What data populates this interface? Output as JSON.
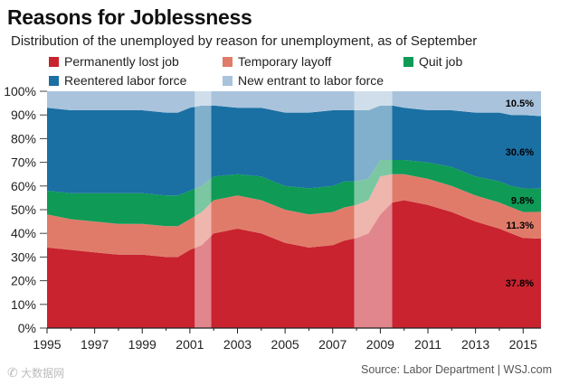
{
  "header": {
    "title": "Reasons for Joblessness",
    "subtitle": "Distribution of the unemployed by reason for unemployment, as of September"
  },
  "footer": {
    "source": "Source: Labor Department  |  WSJ.com",
    "watermark_text": "大数据网"
  },
  "chart_data": {
    "type": "area",
    "stacked": true,
    "title": "Reasons for Joblessness",
    "xlabel": "",
    "ylabel": "",
    "xlim": [
      1995,
      2015.75
    ],
    "ylim": [
      0,
      100
    ],
    "y_ticks": [
      "0%",
      "10%",
      "20%",
      "30%",
      "40%",
      "50%",
      "60%",
      "70%",
      "80%",
      "90%",
      "100%"
    ],
    "x_ticks": [
      "1995",
      "1997",
      "1999",
      "2001",
      "2003",
      "2005",
      "2007",
      "2009",
      "2011",
      "2013",
      "2015"
    ],
    "grid": false,
    "recessions": [
      [
        2001.2,
        2001.9
      ],
      [
        2007.9,
        2009.5
      ]
    ],
    "x": [
      1995,
      1996,
      1997,
      1998,
      1999,
      2000,
      2000.5,
      2001,
      2001.5,
      2002,
      2003,
      2004,
      2005,
      2006,
      2007,
      2007.5,
      2008,
      2008.5,
      2009,
      2009.5,
      2010,
      2011,
      2012,
      2013,
      2014,
      2014.5,
      2015,
      2015.75
    ],
    "series": [
      {
        "name": "Permanently lost job",
        "color": "#c8232f",
        "label": "37.8%",
        "values": [
          34,
          33,
          32,
          31,
          31,
          30,
          30,
          33,
          35,
          40,
          42,
          40,
          36,
          34,
          35,
          37,
          38,
          40,
          48,
          53,
          54,
          52,
          49,
          45,
          42,
          40,
          38,
          37.8
        ]
      },
      {
        "name": "Temporary layoff",
        "color": "#e07b6a",
        "label": "11.3%",
        "values": [
          14,
          13,
          13,
          13,
          13,
          13,
          13,
          13,
          14,
          14,
          14,
          14,
          14,
          14,
          14,
          14,
          14,
          14,
          16,
          12,
          11,
          11,
          11,
          11,
          11,
          11,
          11,
          11.3
        ]
      },
      {
        "name": "Quit job",
        "color": "#0f9a56",
        "label": "9.8%",
        "values": [
          10,
          11,
          12,
          13,
          13,
          13,
          13,
          12,
          11,
          10,
          9,
          10,
          10,
          11,
          11,
          11,
          10,
          9,
          7,
          6,
          6,
          7,
          8,
          8,
          9,
          9,
          10,
          9.8
        ]
      },
      {
        "name": "Reentered labor force",
        "color": "#1a6fa3",
        "label": "30.6%",
        "values": [
          35,
          35,
          35,
          35,
          35,
          35,
          35,
          35,
          34,
          30,
          28,
          29,
          31,
          32,
          32,
          30,
          30,
          29,
          23,
          23,
          22,
          22,
          24,
          27,
          29,
          30,
          31,
          30.6
        ]
      },
      {
        "name": "New entrant to labor force",
        "color": "#a9c3dc",
        "label": "10.5%",
        "values": [
          7,
          8,
          8,
          8,
          8,
          9,
          9,
          7,
          6,
          6,
          7,
          7,
          9,
          9,
          8,
          8,
          8,
          8,
          6,
          6,
          7,
          8,
          8,
          9,
          9,
          10,
          10,
          10.5
        ]
      }
    ]
  }
}
